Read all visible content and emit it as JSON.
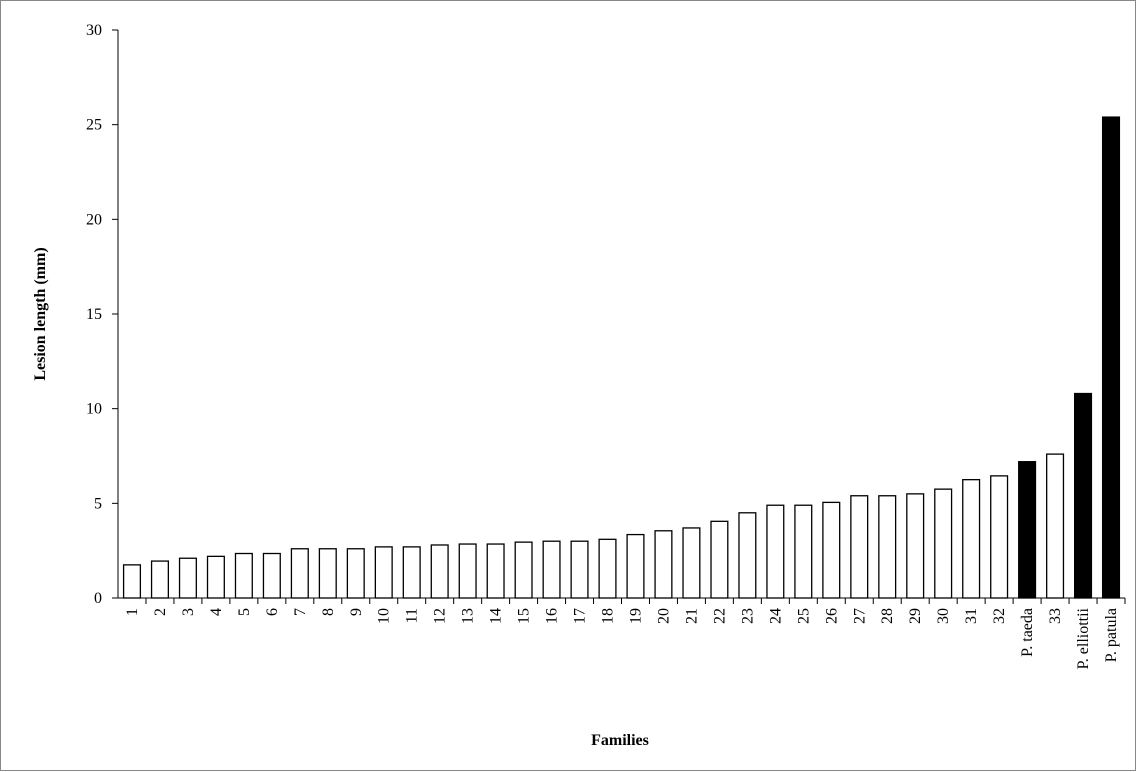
{
  "chart_data": {
    "type": "bar",
    "x_label": "Families",
    "y_label": "Lesion length (mm)",
    "categories": [
      "1",
      "2",
      "3",
      "4",
      "5",
      "6",
      "7",
      "8",
      "9",
      "10",
      "11",
      "12",
      "13",
      "14",
      "15",
      "16",
      "17",
      "18",
      "19",
      "20",
      "21",
      "22",
      "23",
      "24",
      "25",
      "26",
      "27",
      "28",
      "29",
      "30",
      "31",
      "32",
      "P. taeda",
      "33",
      "P. elliottii",
      "P. patula"
    ],
    "values": [
      1.75,
      1.95,
      2.1,
      2.2,
      2.35,
      2.35,
      2.6,
      2.6,
      2.6,
      2.7,
      2.7,
      2.8,
      2.85,
      2.85,
      2.95,
      3.0,
      3.0,
      3.1,
      3.35,
      3.55,
      3.7,
      4.05,
      4.5,
      4.9,
      4.9,
      5.05,
      5.4,
      5.4,
      5.5,
      5.75,
      6.25,
      6.45,
      7.2,
      7.6,
      10.8,
      25.4
    ],
    "colors": [
      "#ffffff",
      "#ffffff",
      "#ffffff",
      "#ffffff",
      "#ffffff",
      "#ffffff",
      "#ffffff",
      "#ffffff",
      "#ffffff",
      "#ffffff",
      "#ffffff",
      "#ffffff",
      "#ffffff",
      "#ffffff",
      "#ffffff",
      "#ffffff",
      "#ffffff",
      "#ffffff",
      "#ffffff",
      "#ffffff",
      "#ffffff",
      "#ffffff",
      "#ffffff",
      "#ffffff",
      "#ffffff",
      "#ffffff",
      "#ffffff",
      "#ffffff",
      "#ffffff",
      "#ffffff",
      "#ffffff",
      "#ffffff",
      "#000000",
      "#ffffff",
      "#000000",
      "#000000"
    ],
    "ylim": [
      0,
      30
    ],
    "yticks": [
      0,
      5,
      10,
      15,
      20,
      25,
      30
    ],
    "grid": false
  }
}
